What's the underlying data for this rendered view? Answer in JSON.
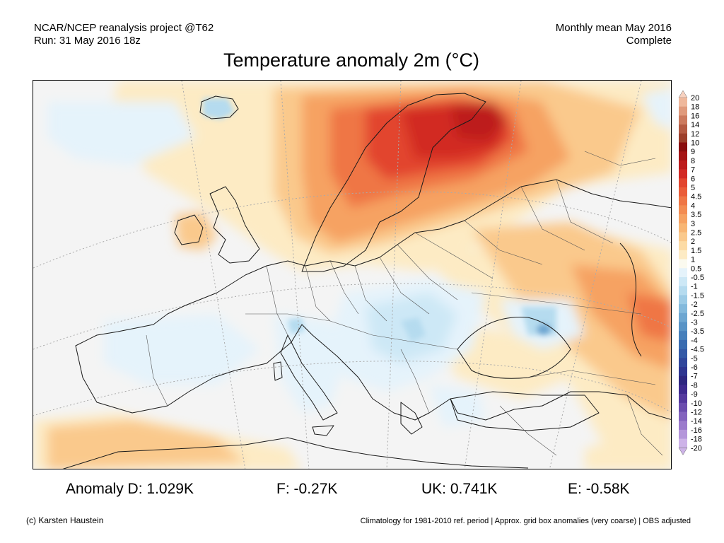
{
  "header": {
    "left_line1": "NCAR/NCEP reanalysis project @T62",
    "left_line2": "Run: 31 May 2016 18z",
    "right_line1": "Monthly mean May 2016",
    "right_line2": "Complete"
  },
  "title": "Temperature anomaly 2m (°C)",
  "map": {
    "region": "Europe",
    "variable": "2m temperature anomaly",
    "colors": {
      "ocean": "#f4f4f4",
      "coast": "#1a1a1a",
      "border": "#555555",
      "graticule": "#aaaaaa"
    }
  },
  "colorbar": {
    "labels": [
      "20",
      "18",
      "16",
      "14",
      "12",
      "10",
      "9",
      "8",
      "7",
      "6",
      "5",
      "4.5",
      "4",
      "3.5",
      "3",
      "2.5",
      "2",
      "1.5",
      "1",
      "0.5",
      "-0.5",
      "-1",
      "-1.5",
      "-2",
      "-2.5",
      "-3",
      "-3.5",
      "-4",
      "-4.5",
      "-5",
      "-6",
      "-7",
      "-8",
      "-9",
      "-10",
      "-12",
      "-14",
      "-16",
      "-18",
      "-20"
    ],
    "colors": [
      "#f8d2c0",
      "#efb89c",
      "#e09a7c",
      "#cc7a5e",
      "#b45a42",
      "#9c3f2a",
      "#8a0e0e",
      "#a51414",
      "#bd1c1c",
      "#d22a24",
      "#e2452e",
      "#ea5c38",
      "#ef7645",
      "#f38c52",
      "#f6a262",
      "#f8b674",
      "#fac98c",
      "#fcdba5",
      "#fdebc4",
      "#fbfaef",
      "#e5f3fb",
      "#cde8f6",
      "#b5dbef",
      "#9ccbe6",
      "#83b9dc",
      "#6da6d1",
      "#5893c6",
      "#467fbb",
      "#3a6cb0",
      "#3459a6",
      "#30469b",
      "#2e3590",
      "#2d2680",
      "#3e2a8f",
      "#54399e",
      "#6b4dae",
      "#8363be",
      "#9b7bcc",
      "#b496da",
      "#cdb3e8"
    ]
  },
  "stats": [
    {
      "label": "Anomaly D:",
      "value": "1.029K"
    },
    {
      "label": "F:",
      "value": "-0.27K"
    },
    {
      "label": "UK:",
      "value": "0.741K"
    },
    {
      "label": "E:",
      "value": "-0.58K"
    }
  ],
  "footer": {
    "left": "(c) Karsten Haustein",
    "right": "Climatology for 1981-2010 ref. period | Approx. grid box anomalies (very coarse) | OBS adjusted"
  }
}
